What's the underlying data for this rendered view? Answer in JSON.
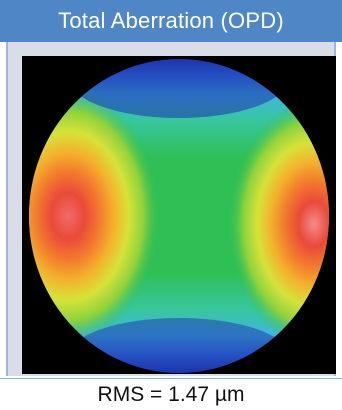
{
  "panel": {
    "title": "Total Aberration (OPD)",
    "rms_label": "RMS = 1.47 µm"
  },
  "map": {
    "icon": "opd-color-map",
    "palette": [
      "#1c33a8",
      "#2f6fe0",
      "#3fb6df",
      "#38c6a0",
      "#2fbf55",
      "#8fd23c",
      "#d6e23a",
      "#f4b12d",
      "#f1792d",
      "#ea4a3a",
      "#f06a6a"
    ]
  }
}
